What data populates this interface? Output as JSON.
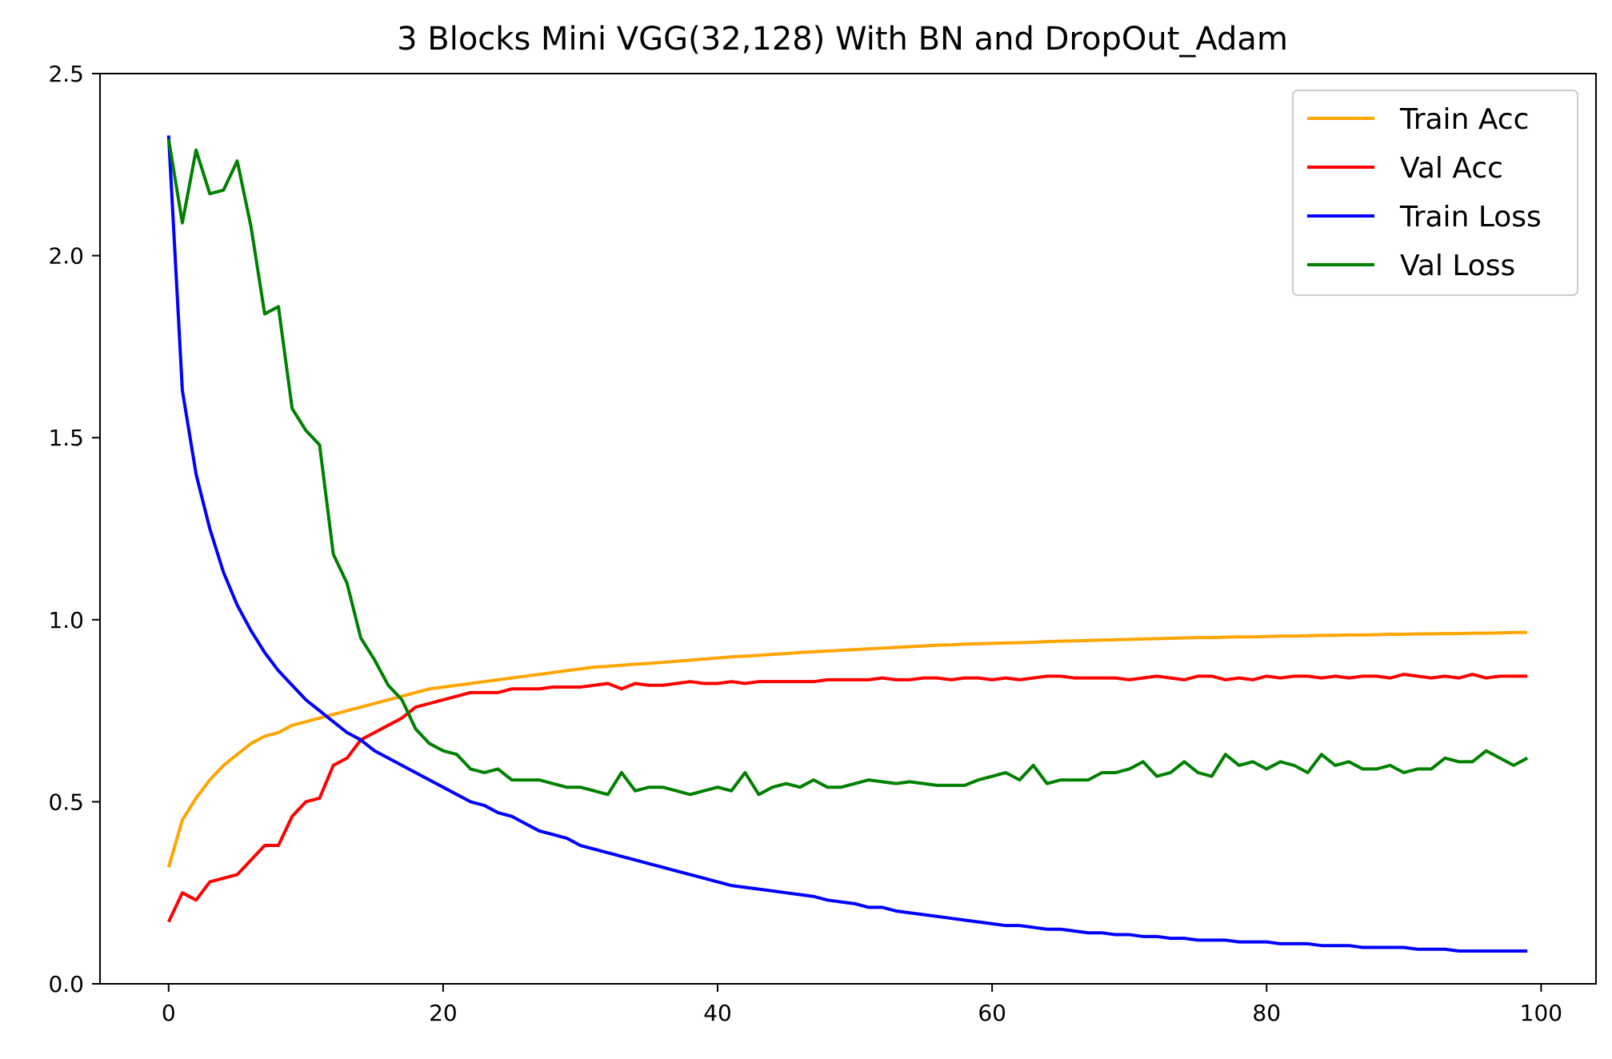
{
  "chart_data": {
    "type": "line",
    "title": "3 Blocks Mini VGG(32,128) With BN and DropOut_Adam",
    "xlabel": "",
    "ylabel": "",
    "xlim": [
      -5,
      104
    ],
    "ylim": [
      0.0,
      2.5
    ],
    "xticks": [
      0,
      20,
      40,
      60,
      80,
      100
    ],
    "yticks": [
      0.0,
      0.5,
      1.0,
      1.5,
      2.0,
      2.5
    ],
    "xtick_labels": [
      "0",
      "20",
      "40",
      "60",
      "80",
      "100"
    ],
    "ytick_labels": [
      "0.0",
      "0.5",
      "1.0",
      "1.5",
      "2.0",
      "2.5"
    ],
    "grid": false,
    "legend_position": "top-right",
    "series": [
      {
        "name": "Train Acc",
        "color": "#ffa500",
        "values": [
          0.32,
          0.45,
          0.51,
          0.56,
          0.6,
          0.63,
          0.66,
          0.68,
          0.69,
          0.71,
          0.72,
          0.73,
          0.74,
          0.75,
          0.76,
          0.77,
          0.78,
          0.79,
          0.8,
          0.81,
          0.815,
          0.82,
          0.825,
          0.83,
          0.835,
          0.84,
          0.845,
          0.85,
          0.855,
          0.86,
          0.865,
          0.87,
          0.872,
          0.875,
          0.878,
          0.88,
          0.883,
          0.886,
          0.889,
          0.892,
          0.895,
          0.898,
          0.9,
          0.902,
          0.905,
          0.907,
          0.91,
          0.912,
          0.914,
          0.916,
          0.918,
          0.92,
          0.922,
          0.924,
          0.926,
          0.928,
          0.93,
          0.931,
          0.933,
          0.934,
          0.935,
          0.936,
          0.937,
          0.938,
          0.94,
          0.941,
          0.942,
          0.943,
          0.944,
          0.945,
          0.946,
          0.947,
          0.948,
          0.949,
          0.95,
          0.951,
          0.951,
          0.952,
          0.953,
          0.953,
          0.954,
          0.955,
          0.955,
          0.956,
          0.957,
          0.957,
          0.958,
          0.958,
          0.959,
          0.96,
          0.96,
          0.961,
          0.961,
          0.962,
          0.962,
          0.963,
          0.963,
          0.964,
          0.965,
          0.965
        ]
      },
      {
        "name": "Val Acc",
        "color": "#ff0000",
        "values": [
          0.17,
          0.25,
          0.23,
          0.28,
          0.29,
          0.3,
          0.34,
          0.38,
          0.38,
          0.46,
          0.5,
          0.51,
          0.6,
          0.62,
          0.67,
          0.69,
          0.71,
          0.73,
          0.76,
          0.77,
          0.78,
          0.79,
          0.8,
          0.8,
          0.8,
          0.81,
          0.81,
          0.81,
          0.815,
          0.815,
          0.815,
          0.82,
          0.825,
          0.81,
          0.825,
          0.82,
          0.82,
          0.825,
          0.83,
          0.825,
          0.825,
          0.83,
          0.825,
          0.83,
          0.83,
          0.83,
          0.83,
          0.83,
          0.835,
          0.835,
          0.835,
          0.835,
          0.84,
          0.835,
          0.835,
          0.84,
          0.84,
          0.835,
          0.84,
          0.84,
          0.835,
          0.84,
          0.835,
          0.84,
          0.845,
          0.845,
          0.84,
          0.84,
          0.84,
          0.84,
          0.835,
          0.84,
          0.845,
          0.84,
          0.835,
          0.845,
          0.845,
          0.835,
          0.84,
          0.835,
          0.845,
          0.84,
          0.845,
          0.845,
          0.84,
          0.845,
          0.84,
          0.845,
          0.845,
          0.84,
          0.85,
          0.845,
          0.84,
          0.845,
          0.84,
          0.85,
          0.84,
          0.845,
          0.845,
          0.845
        ]
      },
      {
        "name": "Train Loss",
        "color": "#0000ff",
        "values": [
          2.33,
          1.63,
          1.4,
          1.25,
          1.13,
          1.04,
          0.97,
          0.91,
          0.86,
          0.82,
          0.78,
          0.75,
          0.72,
          0.69,
          0.67,
          0.64,
          0.62,
          0.6,
          0.58,
          0.56,
          0.54,
          0.52,
          0.5,
          0.49,
          0.47,
          0.46,
          0.44,
          0.42,
          0.41,
          0.4,
          0.38,
          0.37,
          0.36,
          0.35,
          0.34,
          0.33,
          0.32,
          0.31,
          0.3,
          0.29,
          0.28,
          0.27,
          0.265,
          0.26,
          0.255,
          0.25,
          0.245,
          0.24,
          0.23,
          0.225,
          0.22,
          0.21,
          0.21,
          0.2,
          0.195,
          0.19,
          0.185,
          0.18,
          0.175,
          0.17,
          0.165,
          0.16,
          0.16,
          0.155,
          0.15,
          0.15,
          0.145,
          0.14,
          0.14,
          0.135,
          0.135,
          0.13,
          0.13,
          0.125,
          0.125,
          0.12,
          0.12,
          0.12,
          0.115,
          0.115,
          0.115,
          0.11,
          0.11,
          0.11,
          0.105,
          0.105,
          0.105,
          0.1,
          0.1,
          0.1,
          0.1,
          0.095,
          0.095,
          0.095,
          0.09,
          0.09,
          0.09,
          0.09,
          0.09,
          0.09
        ]
      },
      {
        "name": "Val Loss",
        "color": "#008000",
        "values": [
          2.32,
          2.09,
          2.29,
          2.17,
          2.18,
          2.26,
          2.08,
          1.84,
          1.86,
          1.58,
          1.52,
          1.48,
          1.18,
          1.1,
          0.95,
          0.89,
          0.82,
          0.78,
          0.7,
          0.66,
          0.64,
          0.63,
          0.59,
          0.58,
          0.59,
          0.56,
          0.56,
          0.56,
          0.55,
          0.54,
          0.54,
          0.53,
          0.52,
          0.58,
          0.53,
          0.54,
          0.54,
          0.53,
          0.52,
          0.53,
          0.54,
          0.53,
          0.58,
          0.52,
          0.54,
          0.55,
          0.54,
          0.56,
          0.54,
          0.54,
          0.55,
          0.56,
          0.555,
          0.55,
          0.555,
          0.55,
          0.545,
          0.545,
          0.545,
          0.56,
          0.57,
          0.58,
          0.56,
          0.6,
          0.55,
          0.56,
          0.56,
          0.56,
          0.58,
          0.58,
          0.59,
          0.61,
          0.57,
          0.58,
          0.61,
          0.58,
          0.57,
          0.63,
          0.6,
          0.61,
          0.59,
          0.61,
          0.6,
          0.58,
          0.63,
          0.6,
          0.61,
          0.59,
          0.59,
          0.6,
          0.58,
          0.59,
          0.59,
          0.62,
          0.61,
          0.61,
          0.64,
          0.62,
          0.6,
          0.62
        ]
      }
    ]
  }
}
